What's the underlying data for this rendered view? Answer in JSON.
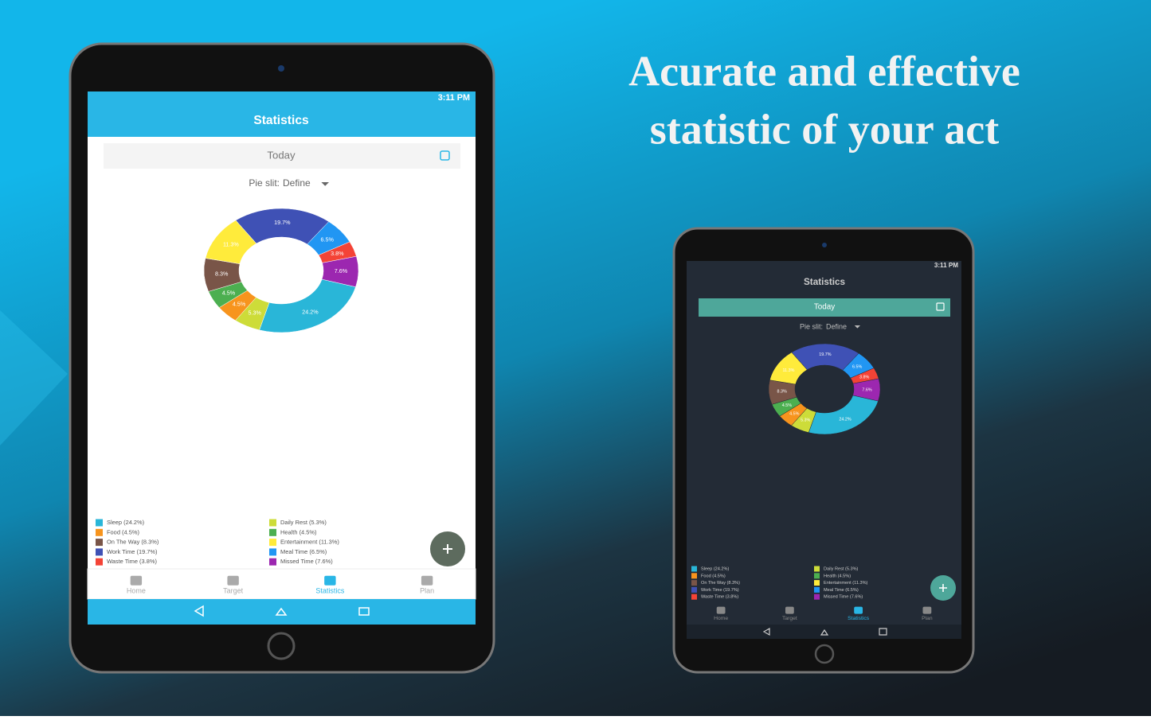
{
  "headline": [
    "Acurate and effective",
    "statistic of your act"
  ],
  "status_time": "3:11 PM",
  "app": {
    "title": "Statistics",
    "date": "Today",
    "pie_split_label": "Pie slit:",
    "pie_split_value": "Define",
    "tabs": [
      "Home",
      "Target",
      "Statistics",
      "Plan"
    ]
  },
  "chart_data": {
    "type": "donut",
    "categories": [
      "Sleep (24.2%)",
      "Food (4.5%)",
      "On The Way (8.3%)",
      "Work Time (19.7%)",
      "Waste Time (3.8%)",
      "Daily Rest (5.3%)",
      "Health (4.5%)",
      "Entertainment (11.3%)",
      "Meal Time (6.5%)",
      "Missed Time (7.6%)"
    ],
    "values": [
      24.2,
      4.5,
      8.3,
      19.7,
      3.8,
      5.3,
      4.5,
      11.3,
      6.5,
      7.6
    ],
    "value_labels": [
      "24.2%",
      "4.5%",
      "8.3%",
      "19.7%",
      "3.8%",
      "5.3%",
      "4.5%",
      "11.3%",
      "6.5%",
      "7.6%"
    ],
    "colors": [
      "#29b6d8",
      "#f7941d",
      "#795548",
      "#3f51b5",
      "#f44336",
      "#cddc39",
      "#4caf50",
      "#ffeb3b",
      "#2196f3",
      "#9c27b0"
    ]
  }
}
